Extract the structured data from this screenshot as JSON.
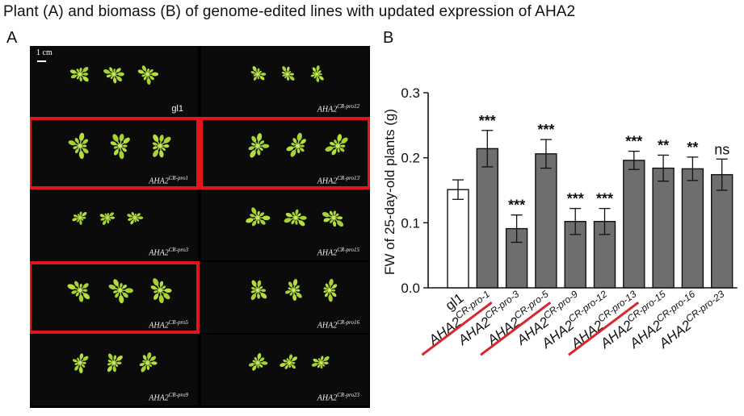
{
  "page": {
    "title": "Plant (A) and biomass (B) of genome-edited lines with updated expression of AHA2",
    "panel_a_letter": "A",
    "panel_b_letter": "B"
  },
  "panel_a": {
    "scale_label": "1 cm",
    "tiles": [
      {
        "label_main": "gl1",
        "label_sup": "",
        "wt": true,
        "highlighted": false
      },
      {
        "label_main": "AHA2",
        "label_sup": "CR-pro12",
        "wt": false,
        "highlighted": false
      },
      {
        "label_main": "AHA2",
        "label_sup": "CR-pro1",
        "wt": false,
        "highlighted": true
      },
      {
        "label_main": "AHA2",
        "label_sup": "CR-pro13",
        "wt": false,
        "highlighted": true
      },
      {
        "label_main": "AHA2",
        "label_sup": "CR-pro3",
        "wt": false,
        "highlighted": false
      },
      {
        "label_main": "AHA2",
        "label_sup": "CR-pro15",
        "wt": false,
        "highlighted": false
      },
      {
        "label_main": "AHA2",
        "label_sup": "CR-pro5",
        "wt": false,
        "highlighted": true
      },
      {
        "label_main": "AHA2",
        "label_sup": "CR-pro16",
        "wt": false,
        "highlighted": false
      },
      {
        "label_main": "AHA2",
        "label_sup": "CR-pro9",
        "wt": false,
        "highlighted": false
      },
      {
        "label_main": "AHA2",
        "label_sup": "CR-pro23",
        "wt": false,
        "highlighted": false
      }
    ],
    "highlight_color": "#e0161b"
  },
  "chart_data": {
    "type": "bar",
    "title": "",
    "xlabel": "",
    "ylabel": "FW of 25-day-old plants (g)",
    "ylim": [
      0,
      0.3
    ],
    "yticks": [
      0.0,
      0.1,
      0.2,
      0.3
    ],
    "ytick_labels": [
      "0.0",
      "0.1",
      "0.2",
      "0.3"
    ],
    "categories": [
      {
        "main": "gl1",
        "sup": "",
        "italic": false,
        "struck": false
      },
      {
        "main": "AHA2",
        "sup": "CR-pro-1",
        "italic": true,
        "struck": true
      },
      {
        "main": "AHA2",
        "sup": "CR-pro-3",
        "italic": true,
        "struck": false
      },
      {
        "main": "AHA2",
        "sup": "CR-pro-5",
        "italic": true,
        "struck": true
      },
      {
        "main": "AHA2",
        "sup": "CR-pro-9",
        "italic": true,
        "struck": false
      },
      {
        "main": "AHA2",
        "sup": "CR-pro-12",
        "italic": true,
        "struck": false
      },
      {
        "main": "AHA2",
        "sup": "CR-pro-13",
        "italic": true,
        "struck": true
      },
      {
        "main": "AHA2",
        "sup": "CR-pro-15",
        "italic": true,
        "struck": false
      },
      {
        "main": "AHA2",
        "sup": "CR-pro-16",
        "italic": true,
        "struck": false
      },
      {
        "main": "AHA2",
        "sup": "CR-pro-23",
        "italic": true,
        "struck": false
      }
    ],
    "values": [
      0.151,
      0.214,
      0.091,
      0.206,
      0.102,
      0.102,
      0.196,
      0.184,
      0.183,
      0.174
    ],
    "errors": [
      0.015,
      0.028,
      0.021,
      0.022,
      0.02,
      0.02,
      0.014,
      0.02,
      0.018,
      0.024
    ],
    "significance": [
      "",
      "***",
      "***",
      "***",
      "***",
      "***",
      "***",
      "**",
      "**",
      "ns"
    ],
    "bar_colors": [
      "#ffffff",
      "#6e6e6e",
      "#6e6e6e",
      "#6e6e6e",
      "#6e6e6e",
      "#6e6e6e",
      "#6e6e6e",
      "#6e6e6e",
      "#6e6e6e",
      "#6e6e6e"
    ],
    "strike_color": "#d7262e",
    "grid": false,
    "legend": "none"
  }
}
